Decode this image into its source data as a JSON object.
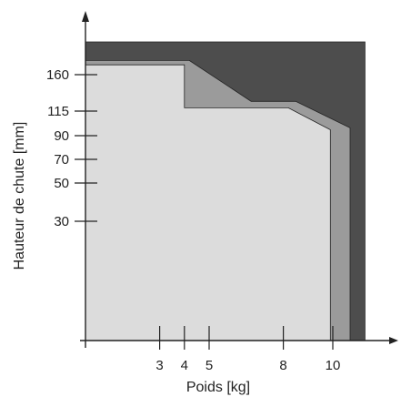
{
  "chart_data": {
    "type": "area",
    "title": "",
    "xlabel": "Poids [kg]",
    "ylabel": "Hauteur de chute [mm]",
    "x_ticks": [
      3,
      4,
      5,
      8,
      10
    ],
    "y_ticks": [
      30,
      50,
      70,
      90,
      115,
      160
    ],
    "colors": {
      "background": "#ffffff",
      "dark": "#4d4d4d",
      "mid": "#9b9b9b",
      "light": "#dcdcdc",
      "outline": "#222222"
    },
    "series": [
      {
        "color": "#4d4d4d",
        "points": [
          [
            0,
            190
          ],
          [
            11.3,
            190
          ],
          [
            11.3,
            0
          ]
        ]
      },
      {
        "color": "#9b9b9b",
        "points": [
          [
            0,
            173
          ],
          [
            4.2,
            173
          ],
          [
            6.7,
            127
          ],
          [
            8.5,
            127
          ],
          [
            10.7,
            98
          ],
          [
            10.7,
            0
          ]
        ]
      },
      {
        "color": "#dcdcdc",
        "points": [
          [
            0,
            169
          ],
          [
            4.0,
            169
          ],
          [
            4.0,
            119
          ],
          [
            8.2,
            119
          ],
          [
            9.9,
            96
          ],
          [
            9.9,
            0
          ]
        ]
      }
    ]
  }
}
